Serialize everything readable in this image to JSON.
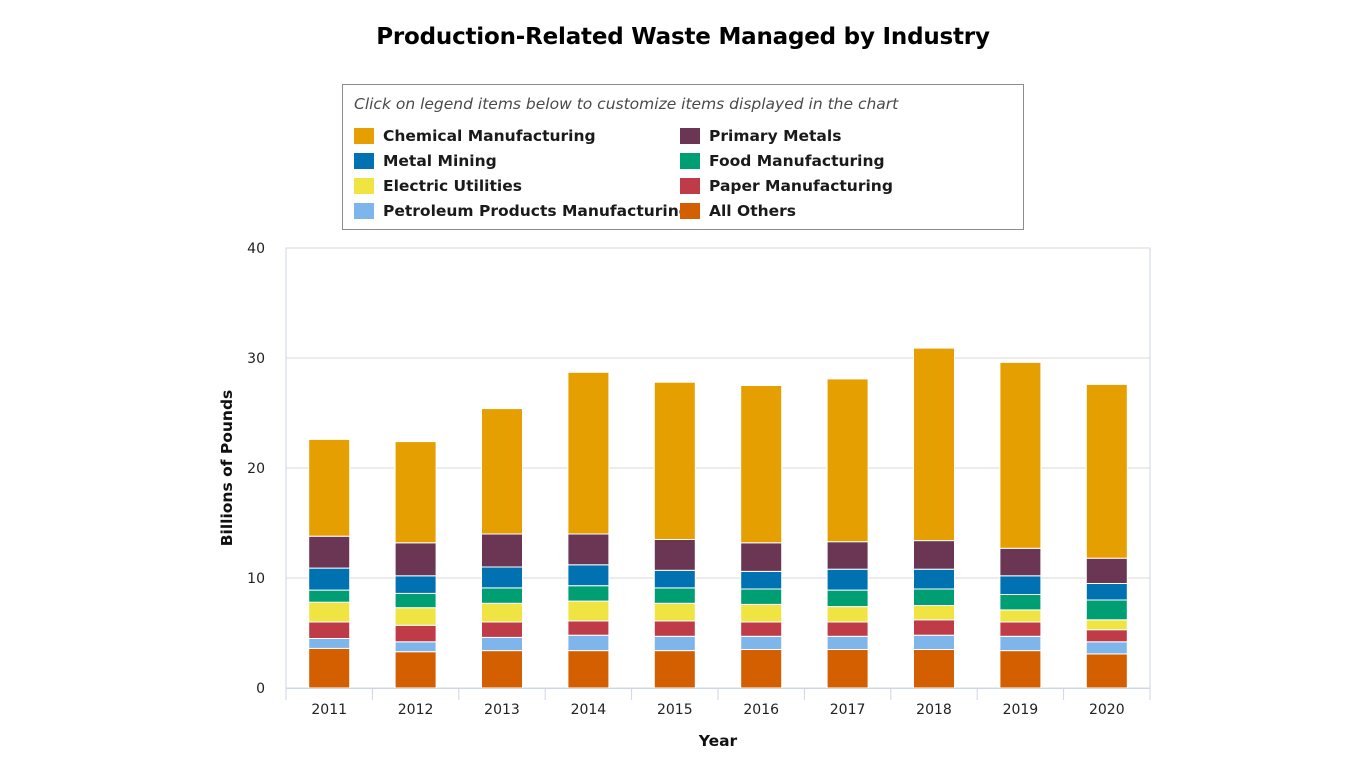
{
  "chart_data": {
    "type": "bar",
    "stacked": true,
    "title": "Production-Related Waste Managed by Industry",
    "legend_hint": "Click on legend items below to customize items displayed in the chart",
    "xlabel": "Year",
    "ylabel": "Billions of Pounds",
    "ylim": [
      0,
      40
    ],
    "yticks": [
      0,
      10,
      20,
      30,
      40
    ],
    "grid": true,
    "legend_position": "top-center",
    "categories": [
      "2011",
      "2012",
      "2013",
      "2014",
      "2015",
      "2016",
      "2017",
      "2018",
      "2019",
      "2020"
    ],
    "series": [
      {
        "name": "All Others",
        "color": "#d35f00",
        "values": [
          3.6,
          3.3,
          3.4,
          3.4,
          3.4,
          3.5,
          3.5,
          3.5,
          3.4,
          3.1
        ]
      },
      {
        "name": "Petroleum Products Manufacturing",
        "color": "#7eb6ec",
        "values": [
          0.9,
          0.9,
          1.2,
          1.4,
          1.3,
          1.2,
          1.2,
          1.3,
          1.3,
          1.1
        ]
      },
      {
        "name": "Paper Manufacturing",
        "color": "#bf3b48",
        "values": [
          1.5,
          1.5,
          1.4,
          1.3,
          1.4,
          1.3,
          1.3,
          1.4,
          1.3,
          1.1
        ]
      },
      {
        "name": "Electric Utilities",
        "color": "#f0e442",
        "values": [
          1.8,
          1.6,
          1.7,
          1.8,
          1.6,
          1.6,
          1.4,
          1.3,
          1.1,
          0.9
        ]
      },
      {
        "name": "Food Manufacturing",
        "color": "#009e73",
        "values": [
          1.1,
          1.3,
          1.4,
          1.4,
          1.4,
          1.4,
          1.5,
          1.5,
          1.4,
          1.8
        ]
      },
      {
        "name": "Metal Mining",
        "color": "#0072b2",
        "values": [
          2.0,
          1.6,
          1.9,
          1.9,
          1.6,
          1.6,
          1.9,
          1.8,
          1.7,
          1.5
        ]
      },
      {
        "name": "Primary Metals",
        "color": "#6b3654",
        "values": [
          2.9,
          3.0,
          3.0,
          2.8,
          2.8,
          2.6,
          2.5,
          2.6,
          2.5,
          2.3
        ]
      },
      {
        "name": "Chemical Manufacturing",
        "color": "#e69f00",
        "values": [
          8.8,
          9.2,
          11.4,
          14.7,
          14.3,
          14.3,
          14.8,
          17.5,
          16.9,
          15.8
        ]
      }
    ],
    "legend_order": [
      "Chemical Manufacturing",
      "Primary Metals",
      "Metal Mining",
      "Food Manufacturing",
      "Electric Utilities",
      "Paper Manufacturing",
      "Petroleum Products Manufacturing",
      "All Others"
    ]
  }
}
